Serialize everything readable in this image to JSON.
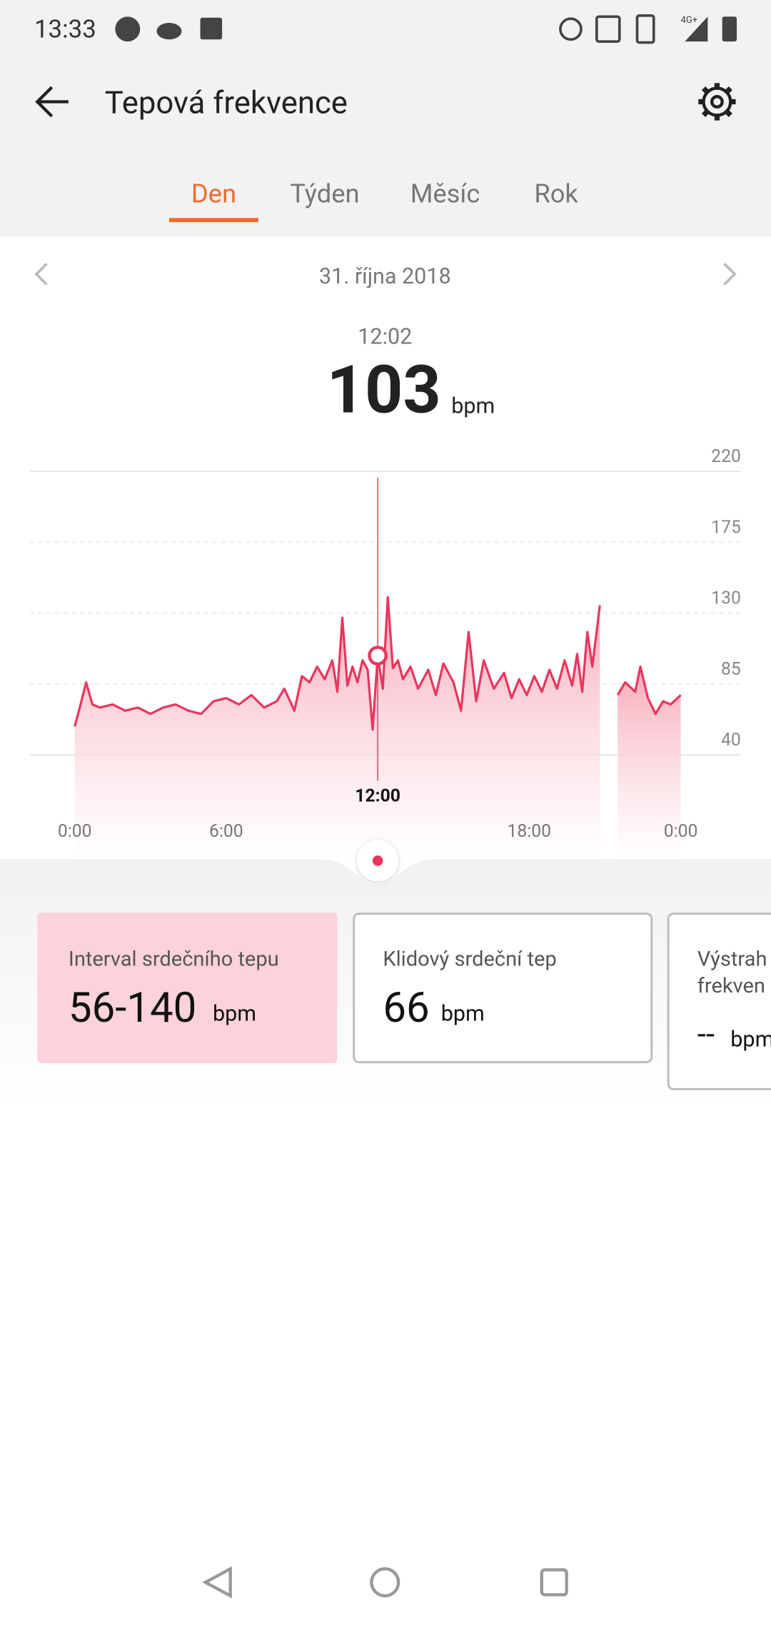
{
  "status_bar": {
    "time": "13:33",
    "network": "4G+"
  },
  "header": {
    "title": "Tepová frekvence"
  },
  "tabs": [
    "Den",
    "Týden",
    "Měsíc",
    "Rok"
  ],
  "active_tab": 0,
  "date": "31. října 2018",
  "selection": {
    "time": "12:02",
    "value": 103,
    "unit": "bpm"
  },
  "chart_data": {
    "type": "line",
    "color": "#e8365d",
    "x": [
      0,
      0.2,
      0.45,
      0.7,
      1,
      1.5,
      2,
      2.5,
      3,
      3.5,
      4,
      4.5,
      5,
      5.5,
      6,
      6.5,
      7,
      7.5,
      8,
      8.3,
      8.7,
      9,
      9.3,
      9.6,
      9.9,
      10.2,
      10.4,
      10.6,
      10.8,
      11,
      11.2,
      11.4,
      11.6,
      11.8,
      12,
      12.2,
      12.4,
      12.6,
      12.8,
      13,
      13.3,
      13.6,
      14,
      14.3,
      14.6,
      15,
      15.3,
      15.6,
      15.9,
      16.2,
      16.6,
      17,
      17.3,
      17.6,
      17.9,
      18.2,
      18.5,
      18.8,
      19.1,
      19.4,
      19.7,
      19.9,
      20.1,
      20.3,
      20.5,
      20.8,
      21.1,
      21.5,
      21.8,
      22.2,
      22.4,
      22.7,
      23,
      23.3,
      23.6,
      24
    ],
    "values": [
      58,
      70,
      86,
      72,
      70,
      72,
      68,
      70,
      66,
      70,
      72,
      68,
      66,
      74,
      76,
      72,
      78,
      70,
      74,
      82,
      68,
      90,
      86,
      96,
      88,
      100,
      80,
      127,
      84,
      96,
      86,
      100,
      94,
      56,
      103,
      82,
      140,
      95,
      100,
      88,
      96,
      82,
      94,
      78,
      98,
      86,
      68,
      118,
      74,
      100,
      82,
      92,
      76,
      88,
      78,
      90,
      80,
      94,
      82,
      100,
      84,
      104,
      80,
      118,
      96,
      135,
      null,
      78,
      86,
      80,
      96,
      76,
      66,
      74,
      72,
      78
    ],
    "xlim": [
      0,
      24
    ],
    "xticks": [
      {
        "value": 0,
        "label": "0:00"
      },
      {
        "value": 6,
        "label": "6:00"
      },
      {
        "value": 12,
        "label": "12:00"
      },
      {
        "value": 18,
        "label": "18:00"
      },
      {
        "value": 24,
        "label": "0:00"
      }
    ],
    "ylim": [
      40,
      220
    ],
    "yticks": [
      220,
      175,
      130,
      85,
      40
    ],
    "grid": true
  },
  "cards": [
    {
      "title": "Interval srdečního tepu",
      "value": "56-140",
      "unit": "bpm"
    },
    {
      "title": "Klidový srdeční tep",
      "value": 66,
      "unit": "bpm"
    },
    {
      "title_lines": [
        "Výstrah",
        "frekven"
      ],
      "value": "--",
      "unit": "bpm"
    }
  ]
}
